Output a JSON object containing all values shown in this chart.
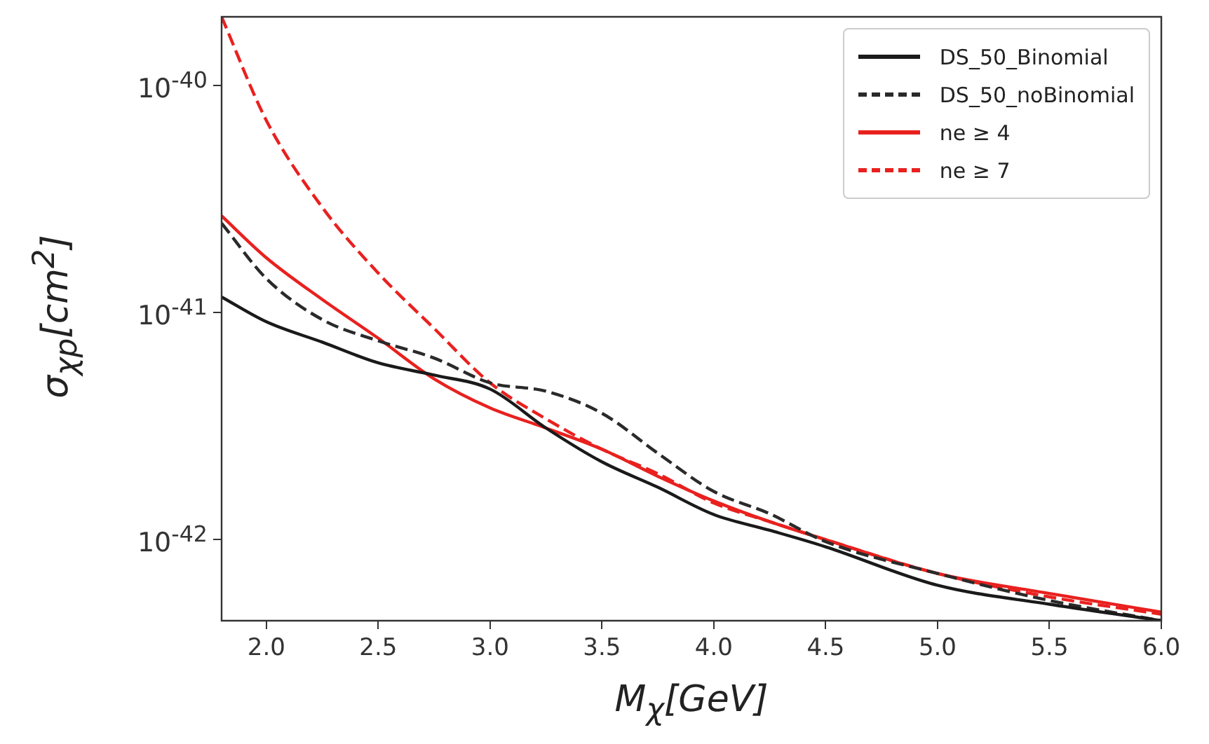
{
  "chart_data": {
    "type": "line",
    "xlabel": "M$_{χ}$[GeV]",
    "ylabel": "σ$_{χp}$[cm$^{2}$]",
    "log": "y",
    "grid": false,
    "legend": "top right",
    "marker": "none",
    "xlim": [
      1.8,
      6.0
    ],
    "xticks": [
      {
        "value": 2,
        "label": "2.0"
      },
      2.5,
      {
        "value": 3,
        "label": "3.0"
      },
      3.5,
      {
        "value": 4,
        "label": "4.0"
      },
      4.5,
      {
        "value": 5,
        "label": "5.0"
      },
      5.5,
      {
        "value": 6,
        "label": "6.0"
      }
    ],
    "ylim": [
      4.4e-43,
      2e-40
    ],
    "yticks": [
      {
        "value": 1e-40,
        "label": "10$^{-40}$"
      },
      {
        "value": 1e-41,
        "label": "10$^{-41}$"
      },
      {
        "value": 1e-42,
        "label": "10$^{-42}$"
      }
    ],
    "x": [
      1.8,
      2.0,
      2.25,
      2.5,
      2.75,
      3.0,
      3.25,
      3.5,
      3.75,
      4.0,
      4.25,
      4.5,
      5.0,
      5.5,
      6.0
    ],
    "series": [
      {
        "name": "DS_50_Binomial",
        "color": "#1a1a1a",
        "line_style": "solid",
        "values": [
          1.17e-41,
          9.1e-42,
          7.4e-42,
          6e-42,
          5.3e-42,
          4.6e-42,
          3.1e-42,
          2.2e-42,
          1.7e-42,
          1.29e-42,
          1.1e-42,
          9.3e-43,
          6.3e-43,
          5.2e-43,
          4.4e-43
        ]
      },
      {
        "name": "DS_50_noBinomial",
        "color": "#2a2a2a",
        "line_style": "dashed",
        "values": [
          2.47e-41,
          1.41e-41,
          9.3e-42,
          7.5e-42,
          6.3e-42,
          4.9e-42,
          4.5e-42,
          3.6e-42,
          2.4e-42,
          1.63e-42,
          1.3e-42,
          9.8e-43,
          7.1e-43,
          5.4e-43,
          4.4e-43
        ]
      },
      {
        "name": "ne ≥ 4",
        "color": "#e8211f",
        "line_style": "solid",
        "values": [
          2.66e-41,
          1.74e-41,
          1.14e-41,
          7.7e-42,
          5.1e-42,
          3.8e-42,
          3.1e-42,
          2.5e-42,
          1.9e-42,
          1.48e-42,
          1.2e-42,
          1e-42,
          7.1e-43,
          5.8e-43,
          4.8e-43
        ]
      },
      {
        "name": "ne ≥ 7",
        "color": "#e8211f",
        "line_style": "dashed",
        "values": [
          2e-40,
          7e-41,
          2.9e-41,
          1.49e-41,
          8.5e-42,
          4.9e-42,
          3.4e-42,
          2.5e-42,
          1.95e-42,
          1.45e-42,
          1.2e-42,
          1e-42,
          7.1e-43,
          5.6e-43,
          4.7e-43
        ]
      }
    ]
  }
}
